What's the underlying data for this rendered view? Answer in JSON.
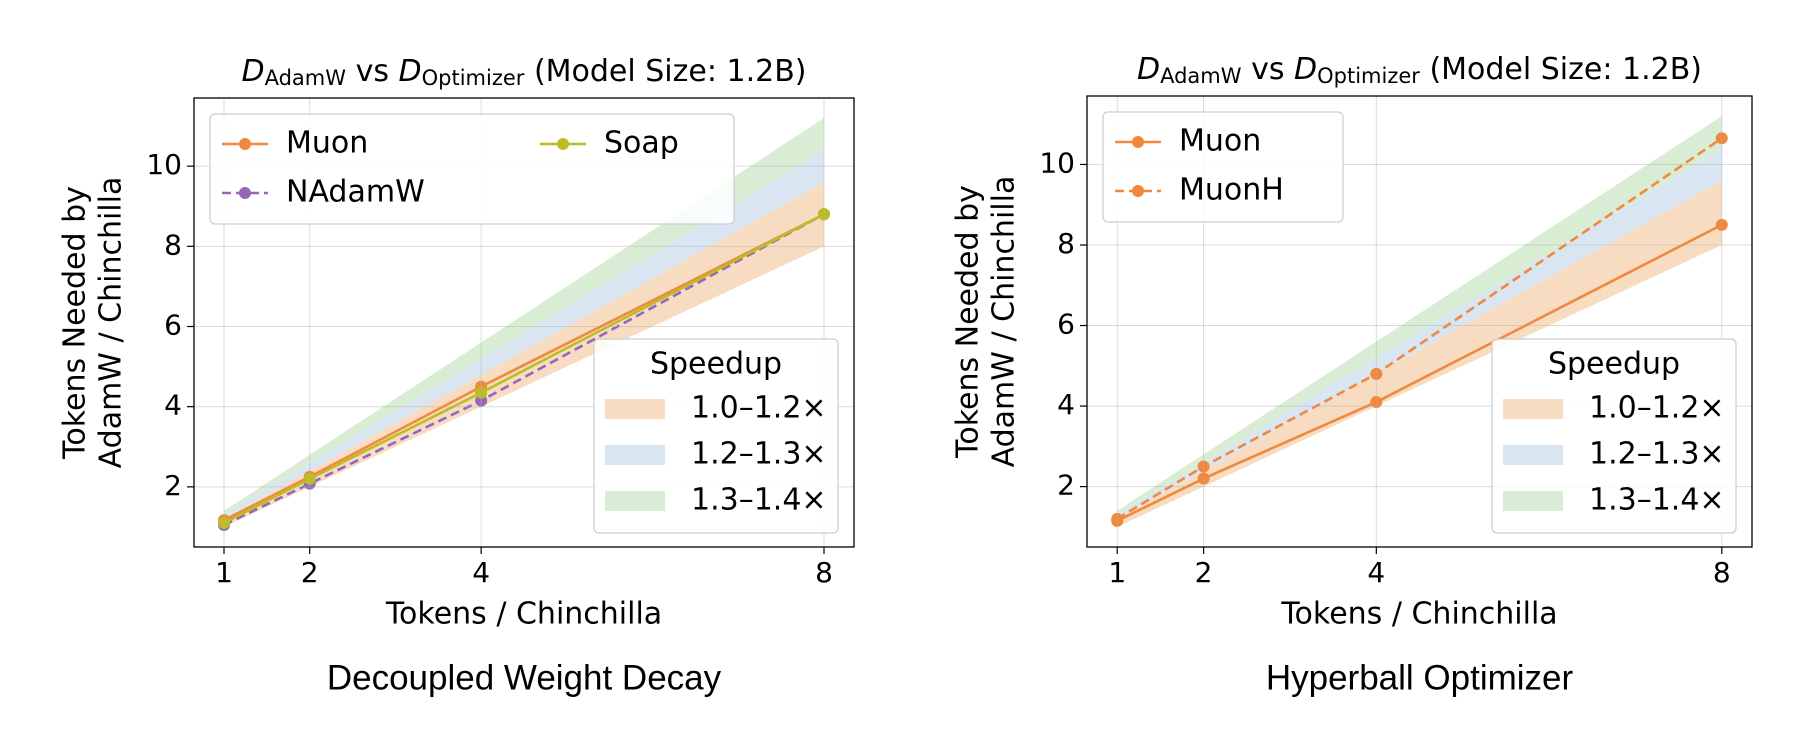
{
  "chart_data": [
    {
      "type": "line",
      "title": [
        "D",
        "AdamW",
        " vs ",
        "D",
        "Optimizer",
        " (Model Size: 1.2B)"
      ],
      "xlabel": "Tokens / Chinchilla",
      "ylabel": [
        "Tokens Needed by",
        "AdamW / Chinchilla"
      ],
      "caption": "Decoupled Weight Decay",
      "x": [
        1,
        2,
        4,
        8
      ],
      "xlim": [
        0.65,
        8.35
      ],
      "xticks": [
        1,
        2,
        4,
        8
      ],
      "ylim": [
        0.5,
        11.7
      ],
      "yticks": [
        2,
        4,
        6,
        8,
        10
      ],
      "grid": true,
      "legend": {
        "loc": "upper left",
        "ncol": 2
      },
      "series": [
        {
          "name": "Muon",
          "color": "#f0883e",
          "dashed": false,
          "values": [
            1.17,
            2.25,
            4.5,
            8.8
          ]
        },
        {
          "name": "NAdamW",
          "color": "#9467bd",
          "dashed": true,
          "values": [
            1.05,
            2.08,
            4.15,
            8.8
          ]
        },
        {
          "name": "Soap",
          "color": "#bcbd22",
          "dashed": false,
          "values": [
            1.1,
            2.2,
            4.35,
            8.8
          ]
        }
      ],
      "band_legend": {
        "title": "Speedup",
        "loc": "lower right"
      },
      "bands": [
        {
          "name": "1.0–1.2×",
          "low": 1.0,
          "high": 1.2,
          "color": "#f8dcc2"
        },
        {
          "name": "1.2–1.3×",
          "low": 1.2,
          "high": 1.3,
          "color": "#d9e6f1"
        },
        {
          "name": "1.3–1.4×",
          "low": 1.3,
          "high": 1.4,
          "color": "#d8edd4"
        }
      ]
    },
    {
      "type": "line",
      "title": [
        "D",
        "AdamW",
        " vs ",
        "D",
        "Optimizer",
        " (Model Size: 1.2B)"
      ],
      "xlabel": "Tokens / Chinchilla",
      "ylabel": [
        "Tokens Needed by",
        "AdamW / Chinchilla"
      ],
      "caption": "Hyperball Optimizer",
      "x": [
        1,
        2,
        4,
        8
      ],
      "xlim": [
        0.65,
        8.35
      ],
      "xticks": [
        1,
        2,
        4,
        8
      ],
      "ylim": [
        0.5,
        11.7
      ],
      "yticks": [
        2,
        4,
        6,
        8,
        10
      ],
      "grid": true,
      "legend": {
        "loc": "upper left",
        "ncol": 1
      },
      "series": [
        {
          "name": "Muon",
          "color": "#f0883e",
          "dashed": false,
          "values": [
            1.15,
            2.2,
            4.1,
            8.5
          ]
        },
        {
          "name": "MuonH",
          "color": "#f0883e",
          "dashed": true,
          "values": [
            1.2,
            2.5,
            4.8,
            10.65
          ]
        }
      ],
      "band_legend": {
        "title": "Speedup",
        "loc": "lower right"
      },
      "bands": [
        {
          "name": "1.0–1.2×",
          "low": 1.0,
          "high": 1.2,
          "color": "#f8dcc2"
        },
        {
          "name": "1.2–1.3×",
          "low": 1.2,
          "high": 1.3,
          "color": "#d9e6f1"
        },
        {
          "name": "1.3–1.4×",
          "low": 1.3,
          "high": 1.4,
          "color": "#d8edd4"
        }
      ]
    }
  ]
}
